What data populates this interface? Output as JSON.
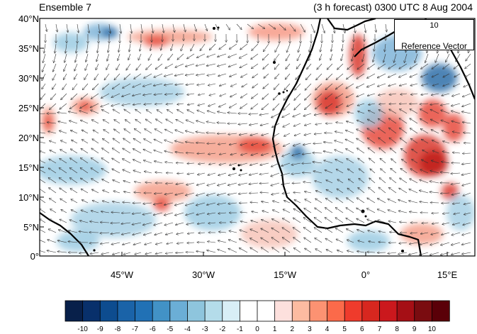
{
  "header": {
    "left_title": "Ensemble 7",
    "right_title": "(3 h forecast) 0300 UTC 8 Aug 2004"
  },
  "axes": {
    "lat_labels": [
      "40°N",
      "35°N",
      "30°N",
      "25°N",
      "20°N",
      "15°N",
      "10°N",
      "5°N",
      "0°"
    ],
    "lon_labels": [
      "45°W",
      "30°W",
      "15°W",
      "0°",
      "15°E"
    ]
  },
  "reference_vector": {
    "magnitude": "10",
    "label": "Reference Vector"
  },
  "colorbar": {
    "labels": [
      "-10",
      "-9",
      "-8",
      "-7",
      "-6",
      "-5",
      "-4",
      "-3",
      "-2",
      "-1",
      "0",
      "1",
      "2",
      "3",
      "4",
      "5",
      "6",
      "7",
      "8",
      "9",
      "10"
    ],
    "colors": [
      "#08204a",
      "#08306b",
      "#0d4c8f",
      "#1a63a8",
      "#2171b5",
      "#4292c6",
      "#6baed6",
      "#8ec5dd",
      "#b4dcea",
      "#d8eef6",
      "#ffffff",
      "#ffffff",
      "#fde0dd",
      "#fcbba1",
      "#fc9272",
      "#fb6a4a",
      "#ef3b2c",
      "#d7271f",
      "#cb181d",
      "#a50f15",
      "#7a0c10",
      "#5a0008"
    ]
  },
  "map": {
    "lat_range": [
      0,
      40
    ],
    "lon_range": [
      -60,
      20
    ],
    "wind_field": "vectors",
    "shaded_field": "anomaly"
  }
}
